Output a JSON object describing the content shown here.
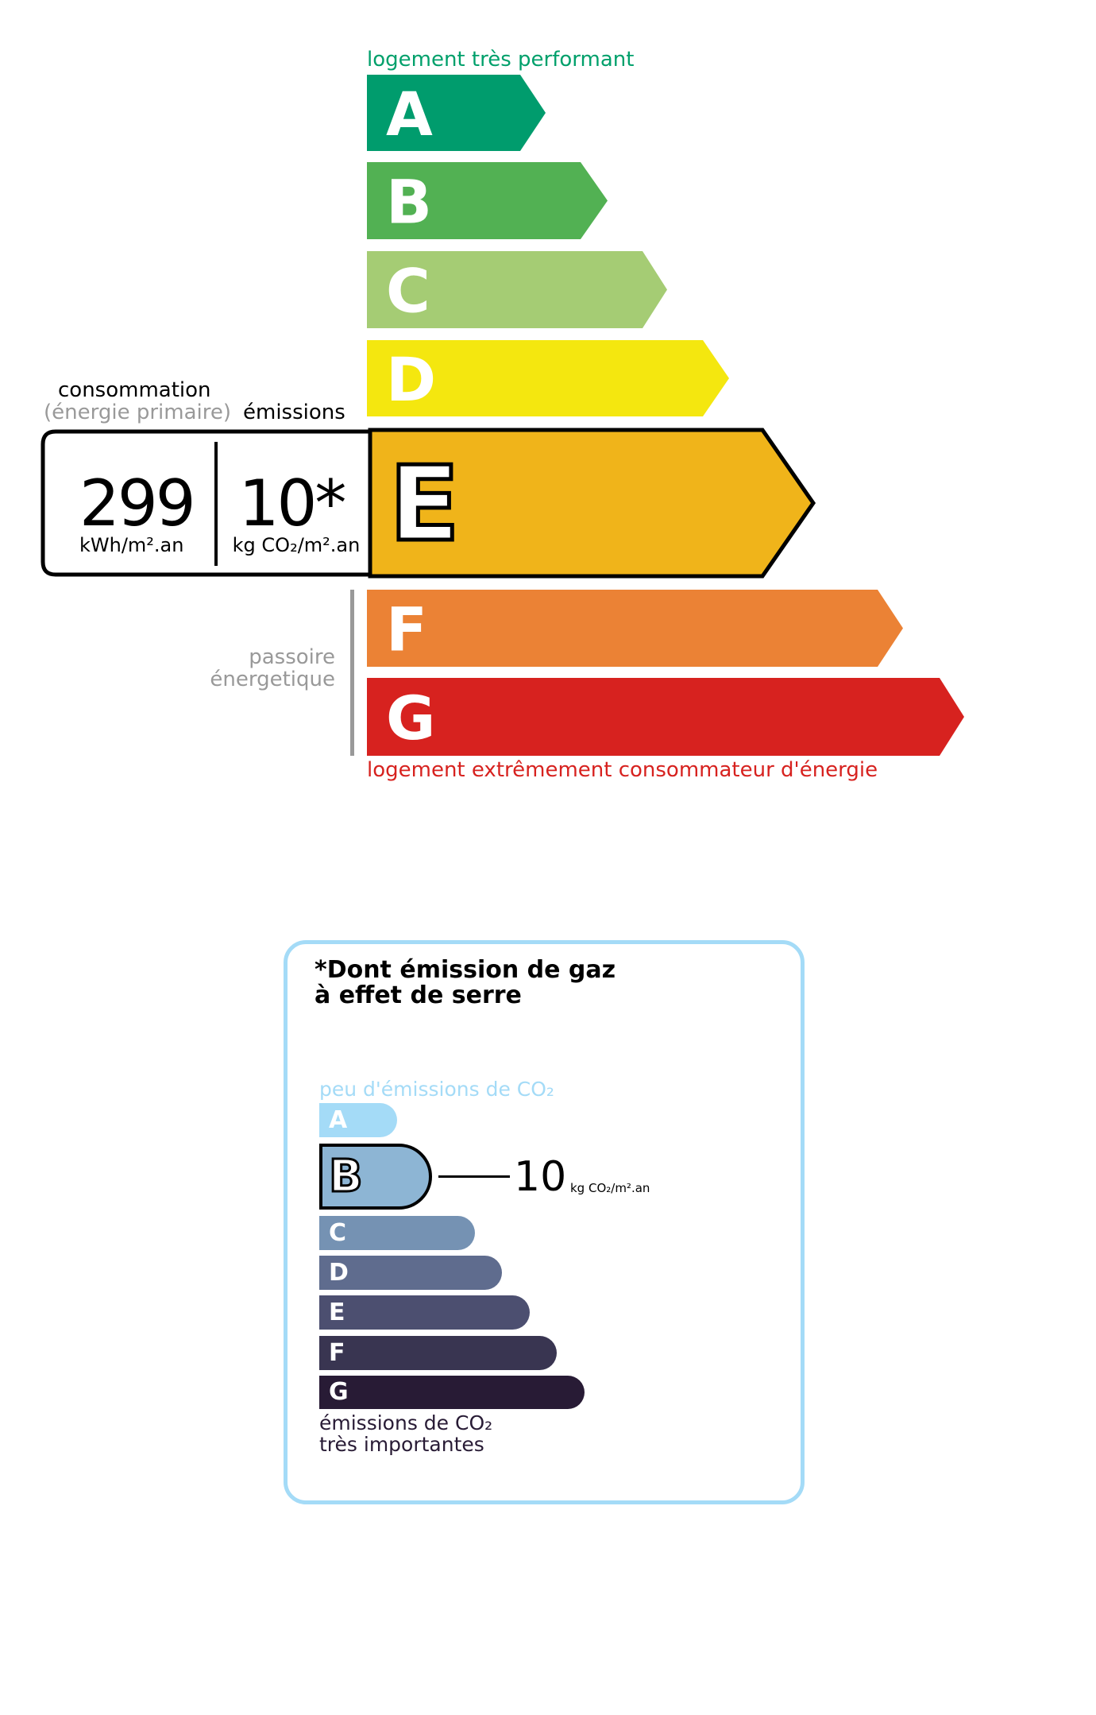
{
  "energy_label": {
    "top_caption": "logement très performant",
    "bottom_caption": "logement extrêmement consommateur d'énergie",
    "top_caption_color": "#00a06b",
    "bottom_caption_color": "#d7221f",
    "classes": [
      {
        "letter": "A",
        "color": "#009c6d"
      },
      {
        "letter": "B",
        "color": "#52b153"
      },
      {
        "letter": "C",
        "color": "#a5cc74"
      },
      {
        "letter": "D",
        "color": "#f4e70f"
      },
      {
        "letter": "E",
        "color": "#f0b41a"
      },
      {
        "letter": "F",
        "color": "#eb8235"
      },
      {
        "letter": "G",
        "color": "#d7221f"
      }
    ],
    "current_class": "E",
    "consumption_label": "consommation",
    "consumption_sublabel": "(énergie primaire)",
    "emissions_label": "émissions",
    "consumption_value": "299",
    "consumption_unit": "kWh/m².an",
    "emissions_value": "10*",
    "emissions_unit": "kg CO₂/m².an",
    "passoire_line1": "passoire",
    "passoire_line2": "énergetique"
  },
  "ghg_label": {
    "title_line1": "*Dont émission de gaz",
    "title_line2": "à effet de serre",
    "top_caption": "peu d'émissions de CO₂",
    "bottom_caption_line1": "émissions de CO₂",
    "bottom_caption_line2": "très importantes",
    "border_color": "#a4dbf7",
    "classes": [
      {
        "letter": "A",
        "color": "#a4dbf7"
      },
      {
        "letter": "B",
        "color": "#8db5d4"
      },
      {
        "letter": "C",
        "color": "#7592b3"
      },
      {
        "letter": "D",
        "color": "#5f6c8e"
      },
      {
        "letter": "E",
        "color": "#4c4f70"
      },
      {
        "letter": "F",
        "color": "#393551"
      },
      {
        "letter": "G",
        "color": "#281b35"
      }
    ],
    "current_class": "B",
    "value": "10",
    "unit": "kg CO₂/m².an"
  }
}
